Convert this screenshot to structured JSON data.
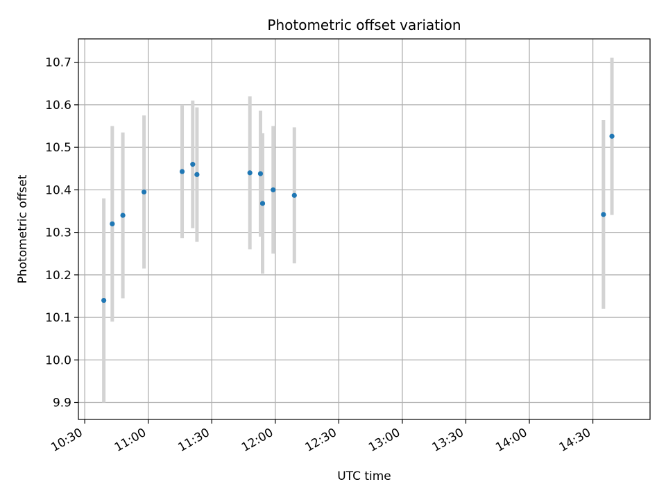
{
  "chart_data": {
    "type": "scatter",
    "title": "Photometric offset variation",
    "xlabel": "UTC time",
    "ylabel": "Photometric offset",
    "x_axis_kind": "time",
    "x_ticks": [
      "10:30",
      "11:00",
      "11:30",
      "12:00",
      "12:30",
      "13:00",
      "13:30",
      "14:00",
      "14:30"
    ],
    "xlim": [
      "10:27",
      "14:57"
    ],
    "y_ticks": [
      "9.9",
      "10.0",
      "10.1",
      "10.2",
      "10.3",
      "10.4",
      "10.5",
      "10.6",
      "10.7"
    ],
    "ylim": [
      9.86,
      10.755
    ],
    "grid": true,
    "colors": {
      "marker": "#1f77b4",
      "errorbar": "#d3d3d3",
      "grid": "#b0b0b0"
    },
    "series": [
      {
        "points": [
          {
            "x": "10:39",
            "y": 10.14,
            "yerr": 0.24
          },
          {
            "x": "10:43",
            "y": 10.32,
            "yerr": 0.23
          },
          {
            "x": "10:48",
            "y": 10.34,
            "yerr": 0.195
          },
          {
            "x": "10:58",
            "y": 10.395,
            "yerr": 0.18
          },
          {
            "x": "11:16",
            "y": 10.443,
            "yerr": 0.157
          },
          {
            "x": "11:21",
            "y": 10.46,
            "yerr": 0.15
          },
          {
            "x": "11:23",
            "y": 10.436,
            "yerr": 0.158
          },
          {
            "x": "11:48",
            "y": 10.44,
            "yerr": 0.18
          },
          {
            "x": "11:53",
            "y": 10.438,
            "yerr": 0.148
          },
          {
            "x": "11:54",
            "y": 10.368,
            "yerr": 0.165
          },
          {
            "x": "11:59",
            "y": 10.4,
            "yerr": 0.15
          },
          {
            "x": "12:09",
            "y": 10.387,
            "yerr": 0.16
          },
          {
            "x": "14:35",
            "y": 10.342,
            "yerr": 0.222
          },
          {
            "x": "14:39",
            "y": 10.526,
            "yerr": 0.185
          }
        ]
      }
    ]
  }
}
